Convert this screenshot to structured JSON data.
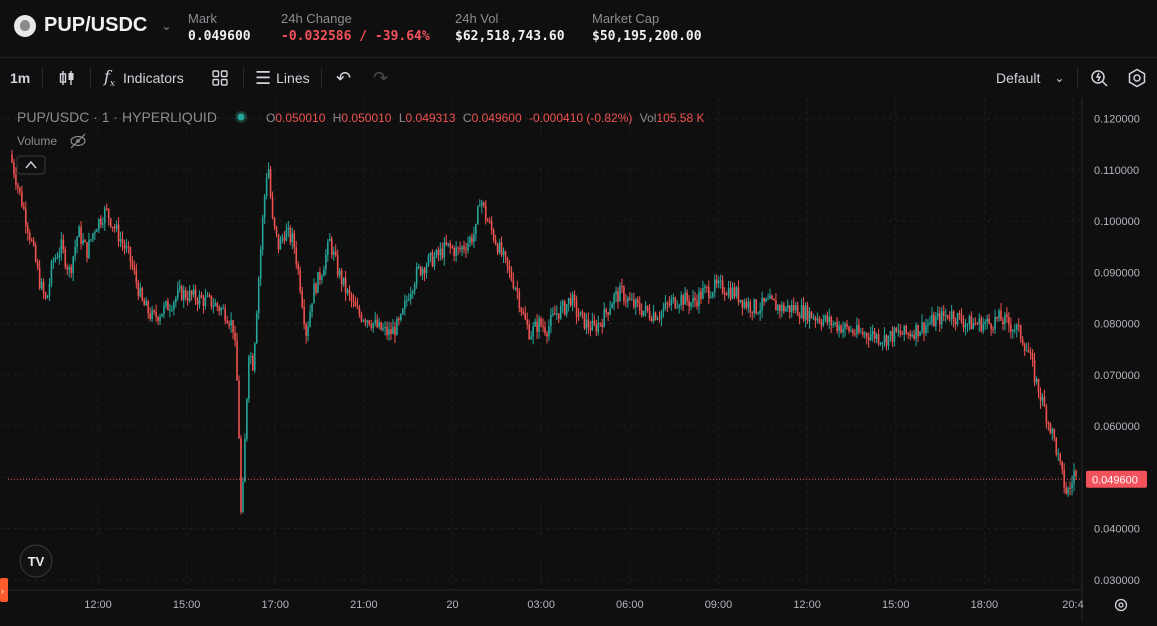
{
  "header": {
    "pair": "PUP/USDC",
    "mark_label": "Mark",
    "mark_value": "0.049600",
    "change_label": "24h Change",
    "change_value": "-0.032586 / -39.64%",
    "vol_label": "24h Vol",
    "vol_value": "$62,518,743.60",
    "mcap_label": "Market Cap",
    "mcap_value": "$50,195,200.00"
  },
  "toolbar": {
    "interval": "1m",
    "indicators_label": "Indicators",
    "lines_label": "Lines",
    "layout_label": "Default"
  },
  "legend": {
    "title": "PUP/USDC · 1 · HYPERLIQUID",
    "o_label": "O",
    "o_value": "0.050010",
    "h_label": "H",
    "h_value": "0.050010",
    "l_label": "L",
    "l_value": "0.049313",
    "c_label": "C",
    "c_value": "0.049600",
    "change": "-0.000410 (-0.82%)",
    "vol_label": "Vol",
    "vol_value": "105.58 K",
    "volume_label": "Volume"
  },
  "colors": {
    "up": "#26a69a",
    "down": "#ef5350",
    "background": "#0f0f10",
    "grid": "#2a2a2e",
    "price_tag": "#f2525c"
  },
  "chart_data": {
    "type": "candlestick",
    "title": "",
    "xlabel": "",
    "ylabel": "",
    "x_ticks": [
      "12:00",
      "15:00",
      "17:00",
      "21:00",
      "20",
      "03:00",
      "06:00",
      "09:00",
      "12:00",
      "15:00",
      "18:00",
      "20:4"
    ],
    "y_ticks": [
      "0.120000",
      "0.110000",
      "0.100000",
      "0.090000",
      "0.080000",
      "0.070000",
      "0.060000",
      "0.050000",
      "0.040000",
      "0.030000"
    ],
    "ylim": [
      0.028,
      0.124
    ],
    "last_price": 0.0496,
    "last_price_label": "0.049600",
    "grid": true,
    "price_path": [
      [
        0.0,
        0.113
      ],
      [
        0.012,
        0.103
      ],
      [
        0.02,
        0.096
      ],
      [
        0.028,
        0.088
      ],
      [
        0.034,
        0.084
      ],
      [
        0.04,
        0.092
      ],
      [
        0.048,
        0.095
      ],
      [
        0.056,
        0.09
      ],
      [
        0.064,
        0.098
      ],
      [
        0.072,
        0.094
      ],
      [
        0.08,
        0.099
      ],
      [
        0.09,
        0.102
      ],
      [
        0.1,
        0.098
      ],
      [
        0.112,
        0.093
      ],
      [
        0.124,
        0.084
      ],
      [
        0.134,
        0.081
      ],
      [
        0.146,
        0.083
      ],
      [
        0.16,
        0.086
      ],
      [
        0.175,
        0.085
      ],
      [
        0.19,
        0.084
      ],
      [
        0.203,
        0.082
      ],
      [
        0.21,
        0.079
      ],
      [
        0.214,
        0.065
      ],
      [
        0.217,
        0.04
      ],
      [
        0.22,
        0.055
      ],
      [
        0.224,
        0.075
      ],
      [
        0.228,
        0.072
      ],
      [
        0.232,
        0.085
      ],
      [
        0.238,
        0.103
      ],
      [
        0.242,
        0.112
      ],
      [
        0.246,
        0.1
      ],
      [
        0.252,
        0.095
      ],
      [
        0.258,
        0.098
      ],
      [
        0.266,
        0.096
      ],
      [
        0.272,
        0.088
      ],
      [
        0.278,
        0.078
      ],
      [
        0.284,
        0.086
      ],
      [
        0.292,
        0.09
      ],
      [
        0.3,
        0.096
      ],
      [
        0.308,
        0.09
      ],
      [
        0.316,
        0.086
      ],
      [
        0.326,
        0.082
      ],
      [
        0.336,
        0.081
      ],
      [
        0.346,
        0.079
      ],
      [
        0.356,
        0.078
      ],
      [
        0.366,
        0.08
      ],
      [
        0.374,
        0.086
      ],
      [
        0.382,
        0.09
      ],
      [
        0.392,
        0.092
      ],
      [
        0.4,
        0.093
      ],
      [
        0.41,
        0.095
      ],
      [
        0.42,
        0.094
      ],
      [
        0.43,
        0.096
      ],
      [
        0.437,
        0.098
      ],
      [
        0.441,
        0.105
      ],
      [
        0.446,
        0.101
      ],
      [
        0.452,
        0.098
      ],
      [
        0.46,
        0.094
      ],
      [
        0.468,
        0.09
      ],
      [
        0.475,
        0.087
      ],
      [
        0.482,
        0.081
      ],
      [
        0.488,
        0.078
      ],
      [
        0.496,
        0.08
      ],
      [
        0.504,
        0.079
      ],
      [
        0.512,
        0.082
      ],
      [
        0.52,
        0.083
      ],
      [
        0.526,
        0.085
      ],
      [
        0.532,
        0.082
      ],
      [
        0.54,
        0.08
      ],
      [
        0.548,
        0.079
      ],
      [
        0.556,
        0.081
      ],
      [
        0.566,
        0.085
      ],
      [
        0.574,
        0.086
      ],
      [
        0.582,
        0.084
      ],
      [
        0.59,
        0.083
      ],
      [
        0.6,
        0.082
      ],
      [
        0.61,
        0.082
      ],
      [
        0.62,
        0.084
      ],
      [
        0.63,
        0.085
      ],
      [
        0.64,
        0.084
      ],
      [
        0.65,
        0.086
      ],
      [
        0.66,
        0.087
      ],
      [
        0.67,
        0.087
      ],
      [
        0.68,
        0.086
      ],
      [
        0.69,
        0.084
      ],
      [
        0.7,
        0.083
      ],
      [
        0.712,
        0.084
      ],
      [
        0.724,
        0.083
      ],
      [
        0.736,
        0.083
      ],
      [
        0.748,
        0.082
      ],
      [
        0.76,
        0.081
      ],
      [
        0.772,
        0.08
      ],
      [
        0.784,
        0.079
      ],
      [
        0.796,
        0.078
      ],
      [
        0.808,
        0.078
      ],
      [
        0.82,
        0.077
      ],
      [
        0.832,
        0.078
      ],
      [
        0.842,
        0.078
      ],
      [
        0.852,
        0.079
      ],
      [
        0.862,
        0.08
      ],
      [
        0.872,
        0.081
      ],
      [
        0.882,
        0.082
      ],
      [
        0.89,
        0.081
      ],
      [
        0.898,
        0.08
      ],
      [
        0.908,
        0.08
      ],
      [
        0.918,
        0.08
      ],
      [
        0.928,
        0.081
      ],
      [
        0.936,
        0.08
      ],
      [
        0.944,
        0.079
      ],
      [
        0.95,
        0.077
      ],
      [
        0.956,
        0.074
      ],
      [
        0.962,
        0.069
      ],
      [
        0.968,
        0.065
      ],
      [
        0.974,
        0.061
      ],
      [
        0.98,
        0.057
      ],
      [
        0.986,
        0.051
      ],
      [
        0.991,
        0.047
      ],
      [
        0.995,
        0.048
      ],
      [
        0.998,
        0.051
      ],
      [
        1.0,
        0.0496
      ]
    ]
  }
}
